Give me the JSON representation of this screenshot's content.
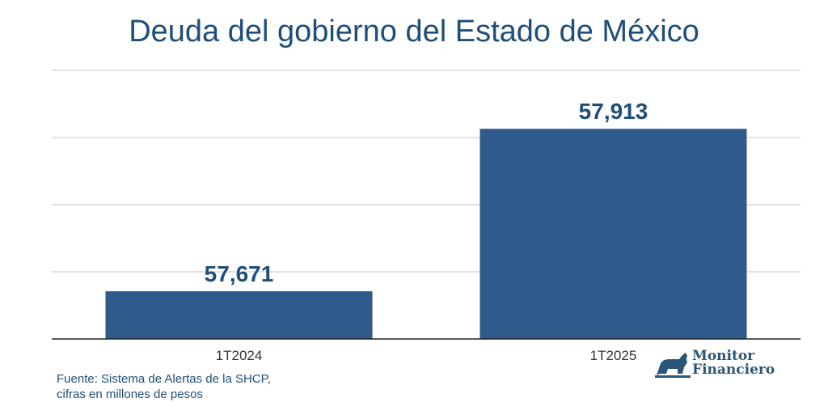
{
  "chart_data": {
    "type": "bar",
    "title": "Deuda del gobierno del Estado de México",
    "categories": [
      "1T2024",
      "1T2025"
    ],
    "values": [
      57671,
      57913
    ],
    "data_labels": [
      "57,671",
      "57,913"
    ],
    "ylim": [
      57600,
      58000
    ],
    "gridlines": [
      57600,
      57700,
      57800,
      57900,
      58000
    ],
    "grid": true,
    "y_tick_labels_shown": false,
    "bar_color": "#2e5a8c",
    "label_color": "#1f4e79"
  },
  "footnote": {
    "line1": "Fuente: Sistema de Alertas de la SHCP,",
    "line2": "cifras en millones de pesos"
  },
  "logo": {
    "line1": "Monitor",
    "line2": "Financiero"
  }
}
